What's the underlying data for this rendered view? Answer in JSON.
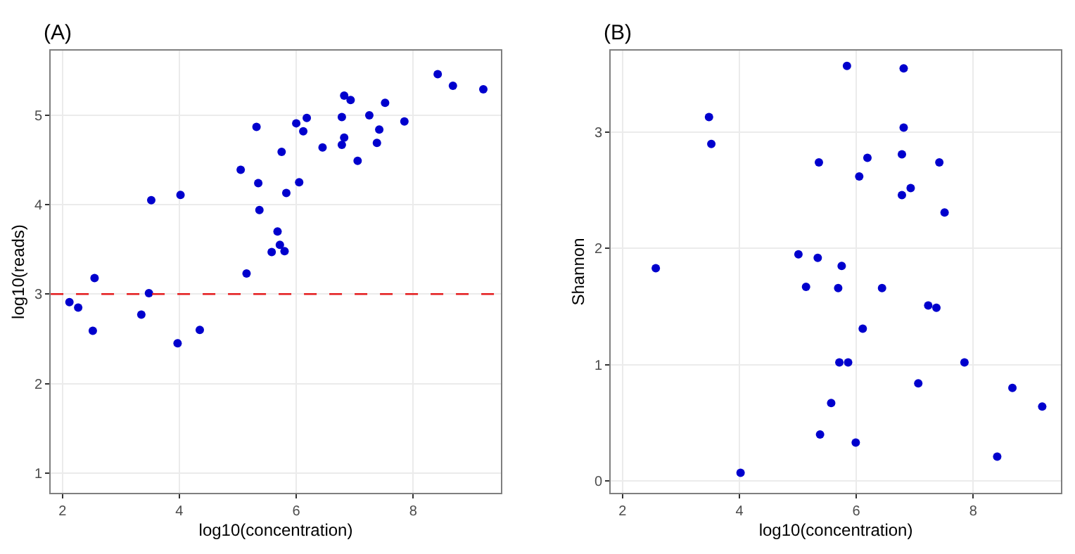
{
  "chart_data": [
    {
      "type": "scatter",
      "title": "(A)",
      "xlabel": "log10(concentration)",
      "ylabel": "log10(reads)",
      "marker": "circle",
      "grid": true,
      "xlim": [
        1.8,
        9.5
      ],
      "xticks": [
        2,
        4,
        6,
        8
      ],
      "ylim": [
        0.78,
        5.72
      ],
      "yticks": [
        1,
        2,
        3,
        4,
        5
      ],
      "ref_lines": [
        {
          "axis": "y",
          "value": 3,
          "color": "#e31a1c",
          "line_style": "dashed"
        }
      ],
      "series": [
        {
          "color": "#0000cd",
          "x": [
            2.12,
            2.27,
            2.52,
            2.55,
            3.35,
            3.48,
            3.52,
            4.02,
            3.97,
            4.35,
            5.05,
            5.15,
            5.32,
            5.35,
            5.37,
            5.58,
            5.68,
            5.72,
            5.75,
            5.8,
            5.83,
            6.0,
            6.05,
            6.12,
            6.18,
            6.45,
            6.78,
            6.78,
            6.82,
            6.82,
            6.93,
            7.05,
            7.25,
            7.38,
            7.42,
            7.52,
            7.85,
            8.42,
            8.68,
            9.2
          ],
          "values": [
            2.91,
            2.85,
            2.59,
            3.18,
            2.77,
            3.01,
            4.05,
            4.11,
            2.45,
            2.6,
            4.39,
            3.23,
            4.87,
            4.24,
            3.94,
            3.47,
            3.7,
            3.55,
            4.59,
            3.48,
            4.13,
            4.91,
            4.25,
            4.82,
            4.97,
            4.64,
            4.67,
            4.98,
            5.22,
            4.75,
            5.17,
            4.49,
            5.0,
            4.69,
            4.84,
            5.14,
            4.93,
            5.46,
            5.33,
            5.29
          ]
        }
      ]
    },
    {
      "type": "scatter",
      "title": "(B)",
      "xlabel": "log10(concentration)",
      "ylabel": "Shannon",
      "marker": "circle",
      "grid": true,
      "xlim": [
        1.8,
        9.5
      ],
      "xticks": [
        2,
        4,
        6,
        8
      ],
      "ylim": [
        -0.1,
        3.7
      ],
      "yticks": [
        0,
        1,
        2,
        3
      ],
      "series": [
        {
          "color": "#0000cd",
          "x": [
            2.57,
            3.48,
            3.52,
            5.36,
            5.84,
            6.05,
            6.19,
            6.81,
            6.81,
            6.78,
            6.78,
            6.93,
            7.42,
            7.51,
            5.01,
            5.34,
            5.75,
            5.14,
            5.69,
            6.44,
            6.11,
            7.23,
            7.37,
            5.71,
            5.86,
            7.85,
            7.06,
            8.67,
            9.18,
            5.57,
            5.38,
            5.99,
            8.41,
            4.02
          ],
          "values": [
            1.83,
            3.13,
            2.9,
            2.74,
            3.57,
            2.62,
            2.78,
            3.55,
            3.04,
            2.81,
            2.46,
            2.52,
            2.74,
            2.31,
            1.95,
            1.92,
            1.85,
            1.67,
            1.66,
            1.66,
            1.31,
            1.51,
            1.49,
            1.02,
            1.02,
            1.02,
            0.84,
            0.8,
            0.64,
            0.67,
            0.4,
            0.33,
            0.21,
            0.07
          ]
        }
      ]
    }
  ]
}
